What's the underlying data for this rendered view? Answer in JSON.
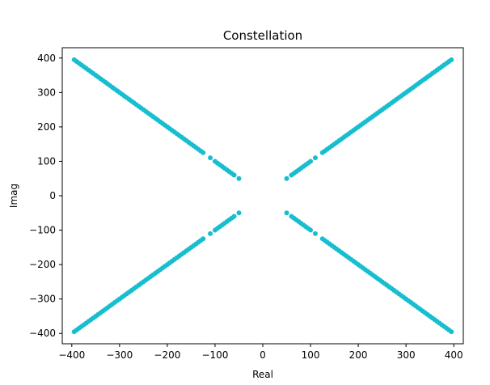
{
  "chart_data": {
    "type": "scatter",
    "title": "Constellation",
    "xlabel": "Real",
    "ylabel": "Imag",
    "xlim": [
      -420,
      420
    ],
    "ylim": [
      -430,
      430
    ],
    "xticks": [
      -400,
      -300,
      -200,
      -100,
      0,
      100,
      200,
      300,
      400
    ],
    "yticks": [
      -400,
      -300,
      -200,
      -100,
      0,
      100,
      200,
      300,
      400
    ],
    "xtick_labels": [
      "−400",
      "−300",
      "−200",
      "−100",
      "0",
      "100",
      "200",
      "300",
      "400"
    ],
    "ytick_labels": [
      "−400",
      "−300",
      "−200",
      "−100",
      "0",
      "100",
      "200",
      "300",
      "400"
    ],
    "grid": false,
    "marker_color": "#17becf",
    "pattern": "Points lie on the diagonals imag = real and imag = -real in all four quadrants",
    "series": [
      {
        "x": [
          50,
          60,
          65,
          70,
          75,
          80,
          85,
          90,
          95,
          100,
          110,
          125,
          130,
          135,
          140,
          145,
          150,
          155,
          160,
          165,
          170,
          175,
          180,
          185,
          190,
          195,
          200,
          205,
          210,
          215,
          220,
          225,
          230,
          235,
          240,
          245,
          250,
          255,
          260,
          265,
          270,
          275,
          280,
          285,
          290,
          295,
          300,
          305,
          310,
          315,
          320,
          325,
          330,
          335,
          340,
          345,
          350,
          355,
          360,
          365,
          370,
          375,
          380,
          385,
          390,
          395
        ],
        "y": [
          50,
          60,
          65,
          70,
          75,
          80,
          85,
          90,
          95,
          100,
          110,
          125,
          130,
          135,
          140,
          145,
          150,
          155,
          160,
          165,
          170,
          175,
          180,
          185,
          190,
          195,
          200,
          205,
          210,
          215,
          220,
          225,
          230,
          235,
          240,
          245,
          250,
          255,
          260,
          265,
          270,
          275,
          280,
          285,
          290,
          295,
          300,
          305,
          310,
          315,
          320,
          325,
          330,
          335,
          340,
          345,
          350,
          355,
          360,
          365,
          370,
          375,
          380,
          385,
          390,
          395
        ]
      },
      {
        "x": [
          -50,
          -60,
          -65,
          -70,
          -75,
          -80,
          -85,
          -90,
          -95,
          -100,
          -110,
          -125,
          -130,
          -135,
          -140,
          -145,
          -150,
          -155,
          -160,
          -165,
          -170,
          -175,
          -180,
          -185,
          -190,
          -195,
          -200,
          -205,
          -210,
          -215,
          -220,
          -225,
          -230,
          -235,
          -240,
          -245,
          -250,
          -255,
          -260,
          -265,
          -270,
          -275,
          -280,
          -285,
          -290,
          -295,
          -300,
          -305,
          -310,
          -315,
          -320,
          -325,
          -330,
          -335,
          -340,
          -345,
          -350,
          -355,
          -360,
          -365,
          -370,
          -375,
          -380,
          -385,
          -390,
          -395
        ],
        "y": [
          50,
          60,
          65,
          70,
          75,
          80,
          85,
          90,
          95,
          100,
          110,
          125,
          130,
          135,
          140,
          145,
          150,
          155,
          160,
          165,
          170,
          175,
          180,
          185,
          190,
          195,
          200,
          205,
          210,
          215,
          220,
          225,
          230,
          235,
          240,
          245,
          250,
          255,
          260,
          265,
          270,
          275,
          280,
          285,
          290,
          295,
          300,
          305,
          310,
          315,
          320,
          325,
          330,
          335,
          340,
          345,
          350,
          355,
          360,
          365,
          370,
          375,
          380,
          385,
          390,
          395
        ]
      },
      {
        "x": [
          -50,
          -60,
          -65,
          -70,
          -75,
          -80,
          -85,
          -90,
          -95,
          -100,
          -110,
          -125,
          -130,
          -135,
          -140,
          -145,
          -150,
          -155,
          -160,
          -165,
          -170,
          -175,
          -180,
          -185,
          -190,
          -195,
          -200,
          -205,
          -210,
          -215,
          -220,
          -225,
          -230,
          -235,
          -240,
          -245,
          -250,
          -255,
          -260,
          -265,
          -270,
          -275,
          -280,
          -285,
          -290,
          -295,
          -300,
          -305,
          -310,
          -315,
          -320,
          -325,
          -330,
          -335,
          -340,
          -345,
          -350,
          -355,
          -360,
          -365,
          -370,
          -375,
          -380,
          -385,
          -390,
          -395
        ],
        "y": [
          -50,
          -60,
          -65,
          -70,
          -75,
          -80,
          -85,
          -90,
          -95,
          -100,
          -110,
          -125,
          -130,
          -135,
          -140,
          -145,
          -150,
          -155,
          -160,
          -165,
          -170,
          -175,
          -180,
          -185,
          -190,
          -195,
          -200,
          -205,
          -210,
          -215,
          -220,
          -225,
          -230,
          -235,
          -240,
          -245,
          -250,
          -255,
          -260,
          -265,
          -270,
          -275,
          -280,
          -285,
          -290,
          -295,
          -300,
          -305,
          -310,
          -315,
          -320,
          -325,
          -330,
          -335,
          -340,
          -345,
          -350,
          -355,
          -360,
          -365,
          -370,
          -375,
          -380,
          -385,
          -390,
          -395
        ]
      },
      {
        "x": [
          50,
          60,
          65,
          70,
          75,
          80,
          85,
          90,
          95,
          100,
          110,
          125,
          130,
          135,
          140,
          145,
          150,
          155,
          160,
          165,
          170,
          175,
          180,
          185,
          190,
          195,
          200,
          205,
          210,
          215,
          220,
          225,
          230,
          235,
          240,
          245,
          250,
          255,
          260,
          265,
          270,
          275,
          280,
          285,
          290,
          295,
          300,
          305,
          310,
          315,
          320,
          325,
          330,
          335,
          340,
          345,
          350,
          355,
          360,
          365,
          370,
          375,
          380,
          385,
          390,
          395
        ],
        "y": [
          -50,
          -60,
          -65,
          -70,
          -75,
          -80,
          -85,
          -90,
          -95,
          -100,
          -110,
          -125,
          -130,
          -135,
          -140,
          -145,
          -150,
          -155,
          -160,
          -165,
          -170,
          -175,
          -180,
          -185,
          -190,
          -195,
          -200,
          -205,
          -210,
          -215,
          -220,
          -225,
          -230,
          -235,
          -240,
          -245,
          -250,
          -255,
          -260,
          -265,
          -270,
          -275,
          -280,
          -285,
          -290,
          -295,
          -300,
          -305,
          -310,
          -315,
          -320,
          -325,
          -330,
          -335,
          -340,
          -345,
          -350,
          -355,
          -360,
          -365,
          -370,
          -375,
          -380,
          -385,
          -390,
          -395
        ]
      }
    ]
  }
}
